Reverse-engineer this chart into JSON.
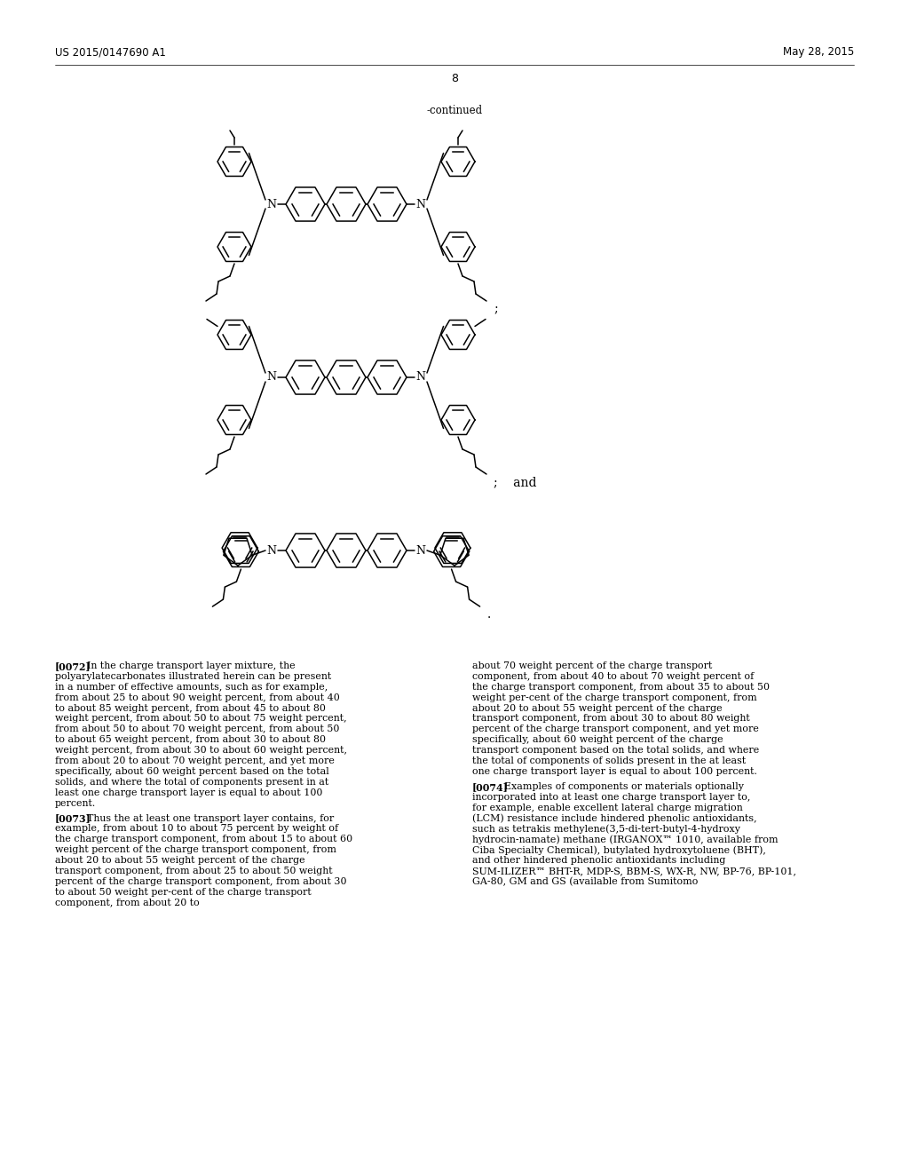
{
  "background_color": "#ffffff",
  "header_left": "US 2015/0147690 A1",
  "header_right": "May 28, 2015",
  "page_number": "8",
  "continued_label": "-continued",
  "paragraph_0072_label": "[0072]",
  "paragraph_0072_text": "In the charge transport layer mixture, the polyarylatecarbonates illustrated herein can be present in a number of effective amounts, such as for example, from about 25 to about 90 weight percent, from about 40 to about 85 weight percent, from about 45 to about 80 weight percent, from about 50 to about 75 weight percent, from about 50 to about 70 weight percent, from about 50 to about 65 weight percent, from about 30 to about 80 weight percent, from about 30 to about 60 weight percent, from about 20 to about 70 weight percent, and yet more specifically, about 60 weight percent based on the total solids, and where the total of components present in at least one charge transport layer is equal to about 100 percent.",
  "paragraph_0073_label": "[0073]",
  "paragraph_0073_text": "Thus the at least one transport layer contains, for example, from about 10 to about 75 percent by weight of the charge transport component, from about 15 to about 60 weight percent of the charge transport component, from about 20 to about 55 weight percent of the charge transport component, from about 25 to about 50 weight percent of the charge transport component, from about 30 to about 50 weight per-cent of the charge transport component, from about 20 to",
  "paragraph_0073_right": "about 70 weight percent of the charge transport component, from about 40 to about 70 weight percent of the charge transport component, from about 35 to about 50 weight per-cent of the charge transport component, from about 20 to about 55 weight percent of the charge transport component, from about 30 to about 80 weight percent of the charge transport component, and yet more specifically, about 60 weight percent of the charge transport component based on the total solids, and where the total of components of solids present in the at least one charge transport layer is equal to about 100 percent.",
  "paragraph_0074_label": "[0074]",
  "paragraph_0074_text": "Examples of components or materials optionally incorporated into at least one charge transport layer to, for example, enable excellent lateral charge migration (LCM) resistance include hindered phenolic antioxidants, such as tetrakis  methylene(3,5-di-tert-butyl-4-hydroxy  hydrocin-namate) methane (IRGANOX™ 1010, available from Ciba Specialty Chemical), butylated hydroxytoluene (BHT), and other hindered phenolic antioxidants including SUM-ILIZER™ BHT-R, MDP-S, BBM-S, WX-R, NW, BP-76, BP-101, GA-80, GM and GS (available from Sumitomo"
}
